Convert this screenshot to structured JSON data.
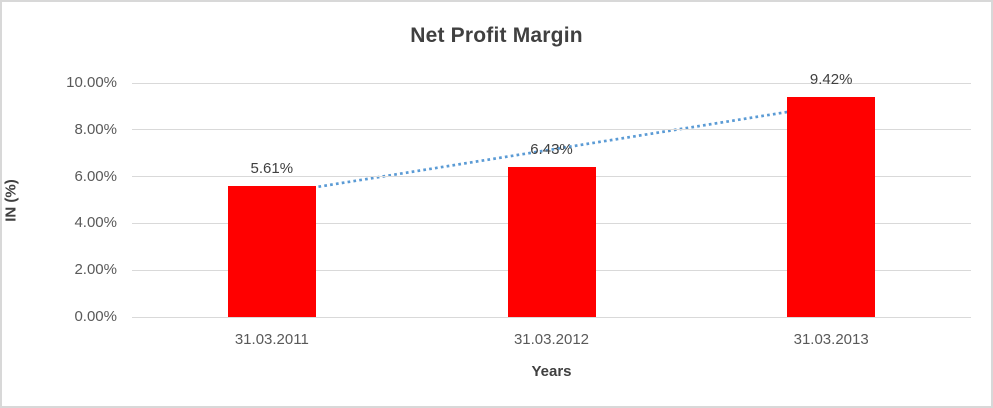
{
  "chart_data": {
    "type": "bar",
    "title": "Net Profit Margin",
    "xlabel": "Years",
    "ylabel": "IN (%)",
    "categories": [
      "31.03.2011",
      "31.03.2012",
      "31.03.2013"
    ],
    "values": [
      5.61,
      6.43,
      9.42
    ],
    "data_labels": [
      "5.61%",
      "6.43%",
      "9.42%"
    ],
    "y_tick_values": [
      0,
      2,
      4,
      6,
      8,
      10
    ],
    "y_tick_labels": [
      "0.00%",
      "2.00%",
      "4.00%",
      "6.00%",
      "8.00%",
      "10.00%"
    ],
    "ylim": [
      0,
      10
    ],
    "grid": true,
    "legend": "none",
    "bar_color": "#ff0000",
    "trendline": {
      "type": "linear",
      "style": "dotted",
      "color": "#5b9bd5",
      "start_value": 5.25,
      "end_value": 9.06
    }
  },
  "colors": {
    "title_text": "#404040",
    "tick_text": "#595959",
    "gridline": "#d9d9d9",
    "frame_border": "#d8d8d8",
    "background": "#ffffff"
  }
}
